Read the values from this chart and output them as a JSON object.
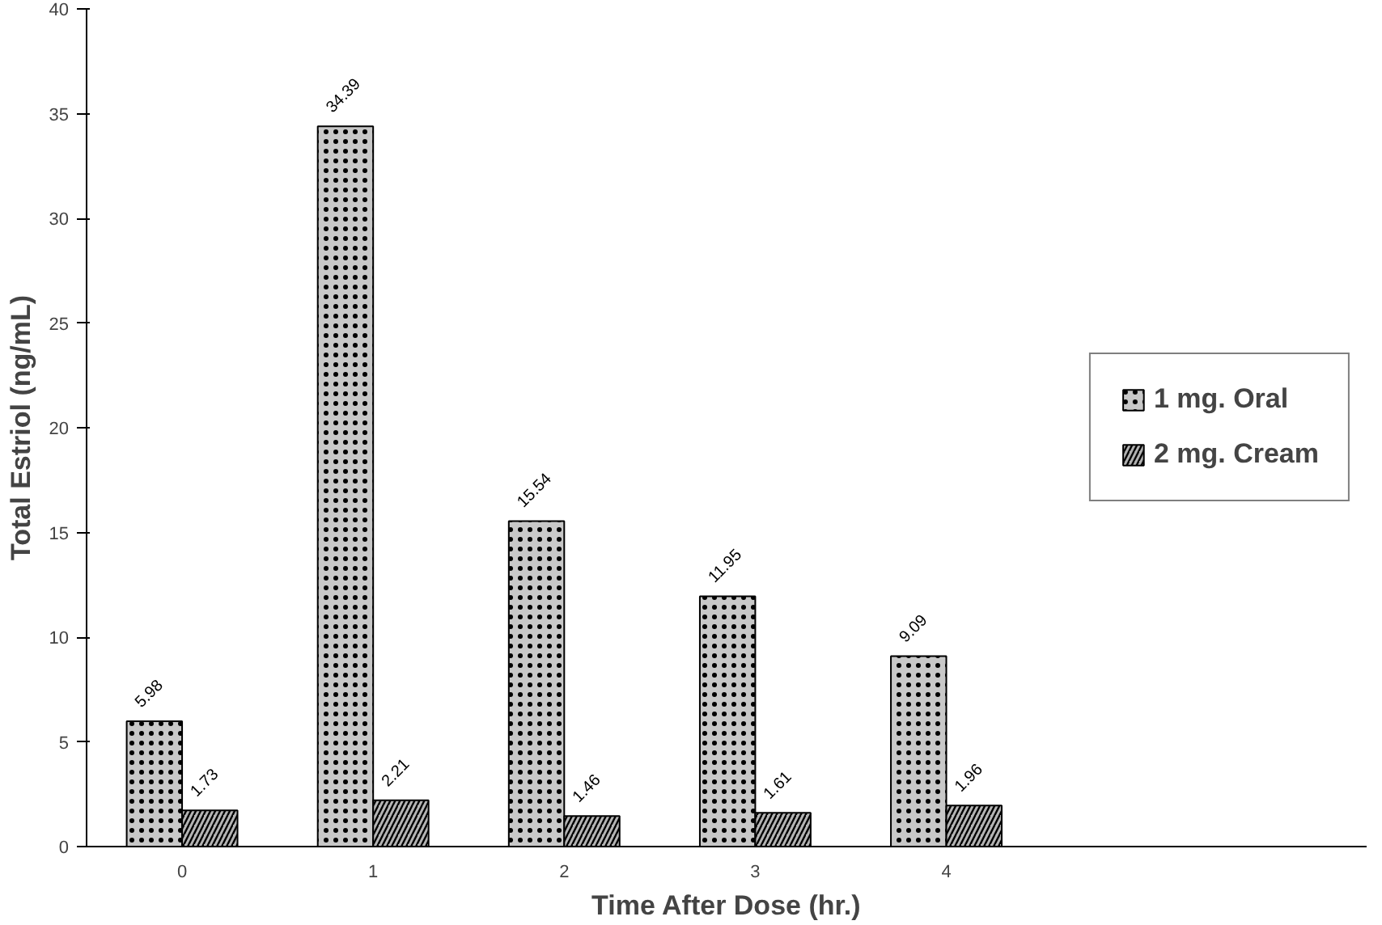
{
  "chart_data": {
    "type": "bar",
    "xlabel": "Time After Dose (hr.)",
    "ylabel": "Total Estriol (ng/mL)",
    "categories": [
      "0",
      "1",
      "2",
      "3",
      "4"
    ],
    "series": [
      {
        "name": "1 mg. Oral",
        "color": "#c8c8c8",
        "values": [
          5.98,
          34.39,
          15.54,
          11.95,
          9.09
        ]
      },
      {
        "name": "2 mg. Cream",
        "color": "#b4b4b4",
        "values": [
          1.73,
          2.21,
          1.46,
          1.61,
          1.96
        ]
      }
    ],
    "ylim": [
      0,
      40
    ],
    "yticks": [
      0,
      5,
      10,
      15,
      20,
      25,
      30,
      35,
      40
    ],
    "grid": false,
    "legend": "right",
    "data_labels": true
  }
}
